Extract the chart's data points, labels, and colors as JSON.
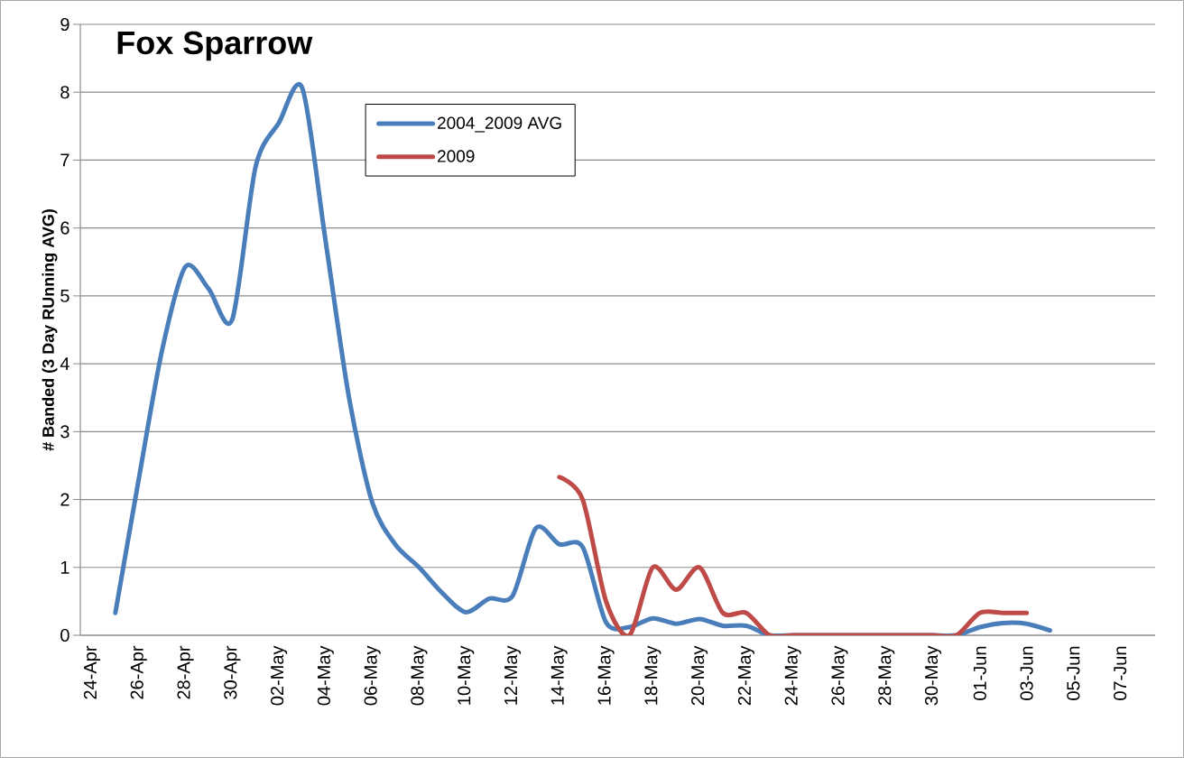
{
  "chart_data": {
    "type": "line",
    "title": "Fox Sparrow",
    "ylabel": "# Banded (3 Day RUnning AVG)",
    "categories": [
      "24-Apr",
      null,
      "26-Apr",
      null,
      "28-Apr",
      null,
      "30-Apr",
      null,
      "02-May",
      null,
      "04-May",
      null,
      "06-May",
      null,
      "08-May",
      null,
      "10-May",
      null,
      "12-May",
      null,
      "14-May",
      null,
      "16-May",
      null,
      "18-May",
      null,
      "20-May",
      null,
      "22-May",
      null,
      "24-May",
      null,
      "26-May",
      null,
      "28-May",
      null,
      "30-May",
      null,
      "01-Jun",
      null,
      "03-Jun",
      null,
      "05-Jun",
      null,
      "07-Jun",
      null
    ],
    "series": [
      {
        "name": "2004_2009 AVG",
        "color": "#4a7ebb",
        "values": [
          null,
          0.33,
          2.3,
          4.2,
          5.43,
          5.1,
          4.65,
          6.9,
          7.55,
          8.06,
          5.8,
          3.5,
          1.95,
          1.33,
          1.0,
          0.62,
          0.34,
          0.54,
          0.58,
          1.58,
          1.34,
          1.3,
          0.19,
          0.12,
          0.25,
          0.17,
          0.24,
          0.14,
          0.14,
          0,
          0,
          0,
          0,
          0,
          0,
          0,
          0,
          0,
          0.12,
          0.18,
          0.17,
          0.07,
          null,
          null,
          null,
          null
        ]
      },
      {
        "name": "2009",
        "color": "#be4b48",
        "values": [
          null,
          null,
          null,
          null,
          null,
          null,
          null,
          null,
          null,
          null,
          null,
          null,
          null,
          null,
          null,
          null,
          null,
          null,
          null,
          null,
          2.33,
          2.0,
          0.5,
          0,
          1.0,
          0.67,
          1.0,
          0.33,
          0.33,
          0,
          0,
          0,
          0,
          0,
          0,
          0,
          0,
          0,
          0.33,
          0.33,
          0.33,
          null,
          null,
          null,
          null,
          null
        ]
      }
    ],
    "ylim": [
      0,
      9
    ],
    "yticks": [
      0,
      1,
      2,
      3,
      4,
      5,
      6,
      7,
      8,
      9
    ],
    "grid": "y",
    "legend": "top",
    "line_style": "solid"
  }
}
